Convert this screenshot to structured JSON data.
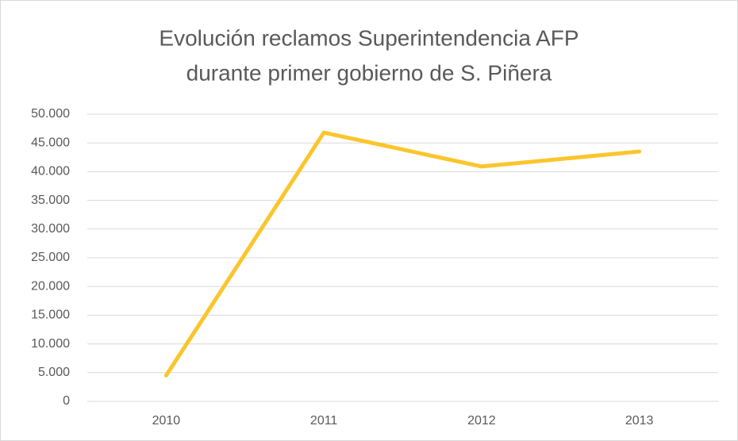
{
  "chart_data": {
    "type": "line",
    "title": [
      "Evolución reclamos Superintendencia AFP",
      "durante primer gobierno de S. Piñera"
    ],
    "categories": [
      "2010",
      "2011",
      "2012",
      "2013"
    ],
    "series": [
      {
        "color": "#fbc52d",
        "values": [
          4500,
          46800,
          40900,
          43500
        ]
      }
    ],
    "ylim": [
      0,
      50000
    ],
    "yticks": [
      0,
      {
        "value": 5000,
        "label": "5.000"
      },
      {
        "value": 10000,
        "label": "10.000"
      },
      {
        "value": 15000,
        "label": "15.000"
      },
      {
        "value": 20000,
        "label": "20.000"
      },
      {
        "value": 25000,
        "label": "25.000"
      },
      {
        "value": 30000,
        "label": "30.000"
      },
      {
        "value": 35000,
        "label": "35.000"
      },
      {
        "value": 40000,
        "label": "40.000"
      },
      {
        "value": 45000,
        "label": "45.000"
      },
      {
        "value": 50000,
        "label": "50.000"
      }
    ],
    "grid": true
  }
}
